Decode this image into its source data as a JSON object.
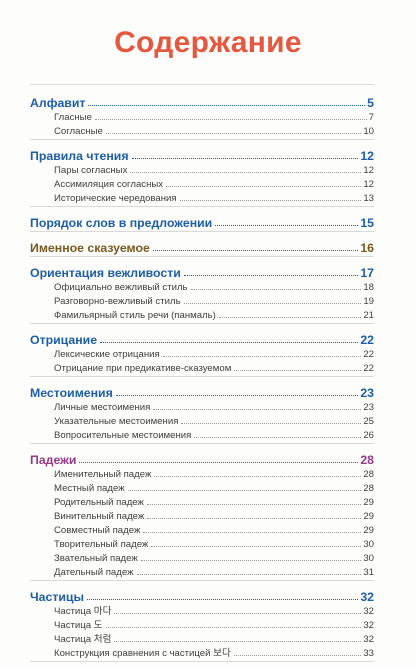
{
  "page": {
    "title": "Содержание",
    "colors": {
      "title": "#e4583f",
      "blue": "#1d5ea8",
      "red": "#cf3d2a",
      "purple": "#953a87",
      "brown": "#7a5a21",
      "green": "#2f8a3a"
    }
  },
  "toc": [
    {
      "title": "Алфавит",
      "page": "5",
      "color": "blue",
      "items": [
        {
          "title": "Гласные",
          "page": "7"
        },
        {
          "title": "Согласные",
          "page": "10"
        }
      ]
    },
    {
      "title": "Правила чтения",
      "page": "12",
      "color": "blue",
      "items": [
        {
          "title": "Пары согласных",
          "page": "12"
        },
        {
          "title": "Ассимиляция согласных",
          "page": "12"
        },
        {
          "title": "Исторические чередования",
          "page": "13"
        }
      ]
    },
    {
      "title": "Порядок слов в предложении",
      "page": "15",
      "color": "blue",
      "items": []
    },
    {
      "title": "Именное сказуемое",
      "page": "16",
      "color": "brown",
      "items": []
    },
    {
      "title": "Ориентация вежливости",
      "page": "17",
      "color": "blue",
      "items": [
        {
          "title": "Официально вежливый стиль",
          "page": "18"
        },
        {
          "title": "Разговорно-вежливый стиль",
          "page": "19"
        },
        {
          "title": "Фамильярный стиль речи (панмаль)",
          "page": "21"
        }
      ]
    },
    {
      "title": "Отрицание",
      "page": "22",
      "color": "blue",
      "items": [
        {
          "title": "Лексические отрицания",
          "page": "22"
        },
        {
          "title": "Отрицание при предикативе-сказуемом",
          "page": "22"
        }
      ]
    },
    {
      "title": "Местоимения",
      "page": "23",
      "color": "blue",
      "items": [
        {
          "title": "Личные местоимения",
          "page": "23"
        },
        {
          "title": "Указательные местоимения",
          "page": "25"
        },
        {
          "title": "Вопросительные местоимения",
          "page": "26"
        }
      ]
    },
    {
      "title": "Падежи",
      "page": "28",
      "color": "purple",
      "items": [
        {
          "title": "Именительный падеж",
          "page": "28"
        },
        {
          "title": "Местный падеж",
          "page": "28"
        },
        {
          "title": "Родительный падеж",
          "page": "29"
        },
        {
          "title": "Винительный падеж",
          "page": "29"
        },
        {
          "title": "Совместный падеж",
          "page": "29"
        },
        {
          "title": "Творительный падеж",
          "page": "30"
        },
        {
          "title": "Звательный падеж",
          "page": "30"
        },
        {
          "title": "Дательный падеж",
          "page": "31"
        }
      ]
    },
    {
      "title": "Частицы",
      "page": "32",
      "color": "blue",
      "items": [
        {
          "title": "Частица 마다",
          "page": "32"
        },
        {
          "title": "Частица 도",
          "page": "32"
        },
        {
          "title": "Частица 처럼",
          "page": "32"
        },
        {
          "title": "Конструкция сравнения  с частицей 보다",
          "page": "33"
        }
      ]
    }
  ]
}
